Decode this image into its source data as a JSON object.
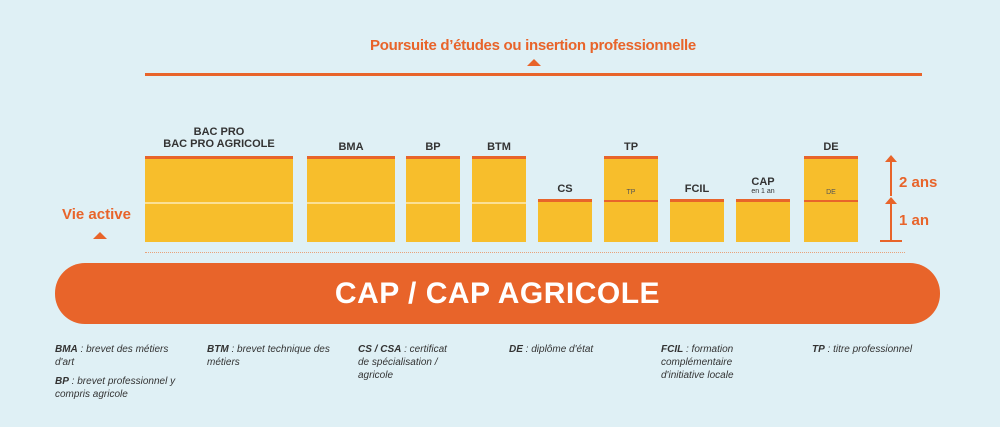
{
  "top": {
    "title": "Poursuite d’études ou insertion professionnelle"
  },
  "side": {
    "vie_active": "Vie active"
  },
  "columns": [
    {
      "label_line1": "BAC PRO",
      "label_line2": "BAC PRO AGRICOLE"
    },
    {
      "label": "BMA"
    },
    {
      "label": "BP"
    },
    {
      "label": "BTM"
    },
    {
      "label": "CS"
    },
    {
      "label": "TP",
      "mid_label": "TP"
    },
    {
      "label": "FCIL"
    },
    {
      "label": "CAP",
      "sub": "en 1 an"
    },
    {
      "label": "DE",
      "mid_label": "DE"
    }
  ],
  "scale": {
    "two_years": "2 ans",
    "one_year": "1 an"
  },
  "banner": {
    "text": "CAP / CAP AGRICOLE"
  },
  "legend": [
    {
      "abbr": "BMA",
      "text": " : brevet des métiers d'art"
    },
    {
      "abbr": "BP",
      "text": " : brevet professionnel y compris agricole"
    },
    {
      "abbr": "BTM",
      "text": " : brevet technique des métiers"
    },
    {
      "abbr": "CS / CSA",
      "text": " : certificat de spécialisation / agricole"
    },
    {
      "abbr": "DE",
      "text": " : diplôme d'état"
    },
    {
      "abbr": "FCIL",
      "text": " : formation complémentaire d'initiative locale"
    },
    {
      "abbr": "TP",
      "text": " : titre professionnel"
    }
  ]
}
